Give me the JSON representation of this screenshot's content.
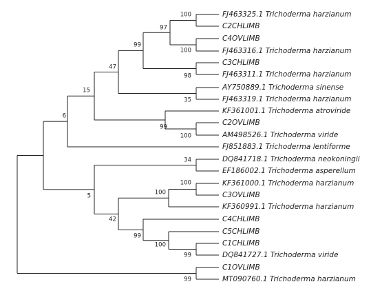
{
  "leaves": [
    "FJ463325.1 Trichoderma harzianum",
    "C2CHLIMB",
    "C4OVLIMB",
    "FJ463316.1 Trichoderma harzianum",
    "C3CHLIMB",
    "FJ463311.1 Trichoderma harzianum",
    "AY750889.1 Trichoderma sinense",
    "FJ463319.1 Trichoderma harzianum",
    "KF361001.1 Trichoderma atroviride",
    "C2OVLIMB",
    "AM498526.1 Trichoderma viride",
    "FJ851883.1 Trichoderma lentiforme",
    "DQ841718.1 Trichoderma neokoningii",
    "EF186002.1 Trichoderma asperellum",
    "KF361000.1 Trichoderma harzianum",
    "C3OVLIMB",
    "KF360991.1 Trichoderma harzianum",
    "C4CHLIMB",
    "C5CHLIMB",
    "C1CHLIMB",
    "DQ841727.1 Trichoderma viride",
    "C1OVLIMB",
    "MT090760.1 Trichoderma harzianum"
  ],
  "bootstrap": [
    100,
    100,
    97,
    98,
    99,
    35,
    47,
    100,
    99,
    15,
    6,
    34,
    100,
    100,
    99,
    100,
    99,
    42,
    5,
    99
  ]
}
